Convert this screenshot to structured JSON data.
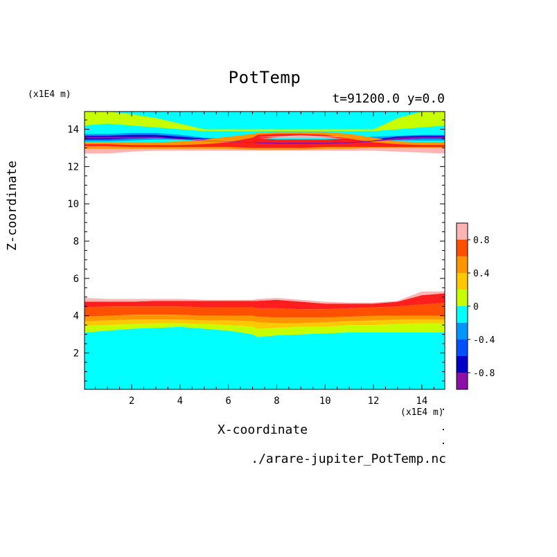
{
  "chart_data": {
    "type": "contour",
    "title": "PotTemp",
    "subtitle": "t=91200.0 y=0.0",
    "xlabel": "X-coordinate",
    "ylabel": "Z-coordinate",
    "x_unit": "(x1E4 m)",
    "y_unit": "(x1E4 m)",
    "xlim": [
      0.05,
      14.95
    ],
    "ylim": [
      0.05,
      14.95
    ],
    "x_ticks": [
      2,
      4,
      6,
      8,
      10,
      12,
      14
    ],
    "y_ticks": [
      2,
      4,
      6,
      8,
      10,
      12,
      14
    ],
    "source": "./arare-jupiter_PotTemp.nc",
    "colorbar": {
      "levels": [
        -1.0,
        -0.8,
        -0.6,
        -0.4,
        -0.2,
        0.0,
        0.2,
        0.4,
        0.6,
        0.8,
        1.0
      ],
      "colors": [
        "#8a10a8",
        "#0000c8",
        "#0050ff",
        "#0096ff",
        "#00ffff",
        "#c8ff00",
        "#ffc800",
        "#ff9600",
        "#ff5000",
        "#ff1e1e",
        "#ffb4b4"
      ],
      "tick_labels": [
        "0.8",
        "0.4",
        "0",
        "-0.4",
        "-0.8"
      ],
      "tick_values": [
        0.8,
        0.4,
        0.0,
        -0.4,
        -0.8
      ]
    },
    "bands": {
      "x": [
        0.05,
        1,
        2,
        3,
        4,
        5,
        6,
        7,
        7.2,
        8,
        9,
        10,
        11,
        12,
        13,
        14,
        14.95
      ],
      "lower": {
        "fill_color": "#00ffff",
        "top_value": 1.0,
        "base_z": 0.05,
        "boundaries": [
          [
            3.1,
            3.2,
            3.3,
            3.35,
            3.4,
            3.3,
            3.2,
            3.0,
            2.85,
            2.95,
            3.0,
            3.05,
            3.1,
            3.1,
            3.1,
            3.1,
            3.1
          ],
          [
            3.45,
            3.5,
            3.55,
            3.6,
            3.6,
            3.55,
            3.5,
            3.4,
            3.3,
            3.35,
            3.4,
            3.4,
            3.5,
            3.5,
            3.55,
            3.6,
            3.6
          ],
          [
            3.7,
            3.75,
            3.8,
            3.8,
            3.8,
            3.75,
            3.75,
            3.7,
            3.65,
            3.6,
            3.6,
            3.65,
            3.7,
            3.75,
            3.8,
            3.8,
            3.8
          ],
          [
            3.95,
            4.0,
            4.05,
            4.05,
            4.05,
            4.0,
            4.0,
            4.0,
            3.95,
            3.9,
            3.9,
            3.9,
            3.95,
            4.0,
            4.0,
            4.0,
            4.0
          ],
          [
            4.45,
            4.5,
            4.5,
            4.5,
            4.5,
            4.45,
            4.45,
            4.45,
            4.4,
            4.4,
            4.35,
            4.35,
            4.4,
            4.45,
            4.5,
            4.6,
            4.7
          ],
          [
            4.75,
            4.75,
            4.75,
            4.8,
            4.8,
            4.8,
            4.8,
            4.8,
            4.8,
            4.85,
            4.75,
            4.65,
            4.65,
            4.65,
            4.75,
            5.1,
            5.2
          ],
          [
            4.95,
            4.9,
            4.9,
            4.9,
            4.9,
            4.85,
            4.85,
            4.85,
            4.9,
            4.95,
            4.85,
            4.75,
            4.7,
            4.7,
            4.8,
            5.3,
            5.3
          ]
        ],
        "band_values": [
          0.1,
          0.3,
          0.5,
          0.7,
          0.9,
          1.0
        ]
      },
      "upper": {
        "layers": [
          {
            "value": 0.1,
            "top": [
              14.95,
              14.95,
              14.95,
              14.95,
              14.95,
              14.95,
              14.95,
              14.95,
              14.95,
              14.95,
              14.95,
              14.95,
              14.95,
              14.95,
              14.95,
              14.95,
              14.95
            ],
            "bottom": [
              13.55,
              13.55,
              13.6,
              13.6,
              13.55,
              13.55,
              13.5,
              13.45,
              13.45,
              13.45,
              13.45,
              13.45,
              13.5,
              13.55,
              13.6,
              13.65,
              13.65
            ]
          },
          {
            "value": -0.1,
            "top": [
              14.95,
              14.95,
              14.95,
              14.95,
              14.95,
              14.95,
              14.95,
              14.95,
              14.95,
              14.95,
              14.95,
              14.95,
              14.95,
              14.95,
              14.95,
              14.95,
              14.95
            ],
            "bottom": [
              13.2,
              13.2,
              13.2,
              13.2,
              13.3,
              13.4,
              13.5,
              13.6,
              13.6,
              13.6,
              13.6,
              13.6,
              13.5,
              13.35,
              13.2,
              13.2,
              13.2
            ]
          },
          {
            "value": 0.1,
            "top": [
              15.0,
              15.0,
              14.8,
              14.6,
              14.3,
              14.0,
              14.0,
              14.0,
              14.0,
              14.0,
              14.0,
              14.0,
              14.0,
              14.0,
              14.6,
              15.0,
              15.0
            ],
            "bottom": [
              14.2,
              14.3,
              14.2,
              14.1,
              14.0,
              13.9,
              13.9,
              13.9,
              13.9,
              13.9,
              13.9,
              13.9,
              13.9,
              13.9,
              14.0,
              14.1,
              14.2
            ]
          },
          {
            "value": -0.3,
            "top": [
              13.75,
              13.75,
              13.8,
              13.8,
              13.7,
              13.55,
              13.5,
              13.45,
              13.45,
              13.45,
              13.45,
              13.45,
              13.5,
              13.6,
              13.65,
              13.7,
              13.7
            ],
            "bottom": [
              13.35,
              13.35,
              13.4,
              13.45,
              13.45,
              13.45,
              13.4,
              13.3,
              13.3,
              13.2,
              13.2,
              13.2,
              13.3,
              13.4,
              13.4,
              13.4,
              13.4
            ]
          },
          {
            "value": -0.7,
            "top": [
              13.65,
              13.65,
              13.7,
              13.7,
              13.6,
              13.5,
              13.45,
              13.4,
              13.35,
              13.3,
              13.3,
              13.3,
              13.35,
              13.45,
              13.6,
              13.65,
              13.65
            ],
            "bottom": [
              13.45,
              13.45,
              13.5,
              13.55,
              13.5,
              13.45,
              13.4,
              13.35,
              13.25,
              13.2,
              13.2,
              13.2,
              13.25,
              13.35,
              13.45,
              13.5,
              13.5
            ]
          },
          {
            "value": 0.5,
            "top": [
              13.3,
              13.3,
              13.3,
              13.3,
              13.35,
              13.45,
              13.6,
              13.75,
              13.8,
              13.85,
              13.85,
              13.85,
              13.75,
              13.55,
              13.35,
              13.3,
              13.3
            ],
            "bottom": [
              13.1,
              13.1,
              13.1,
              13.1,
              13.1,
              13.1,
              13.05,
              13.0,
              13.0,
              13.0,
              13.0,
              13.05,
              13.05,
              13.1,
              13.1,
              13.1,
              13.1
            ]
          },
          {
            "value": 0.9,
            "top": [
              13.2,
              13.2,
              13.15,
              13.15,
              13.15,
              13.2,
              13.3,
              13.55,
              13.7,
              13.75,
              13.75,
              13.7,
              13.5,
              13.3,
              13.2,
              13.15,
              13.15
            ],
            "bottom": [
              12.95,
              12.95,
              12.95,
              12.95,
              12.95,
              12.95,
              12.95,
              12.9,
              12.9,
              12.9,
              12.9,
              12.95,
              12.95,
              13.0,
              13.0,
              13.0,
              13.0
            ]
          },
          {
            "value": 0.5,
            "top": [
              13.1,
              13.1,
              13.05,
              13.05,
              13.05,
              13.05,
              13.05,
              13.0,
              13.0,
              13.0,
              13.0,
              13.05,
              13.05,
              13.05,
              13.05,
              13.05,
              13.05
            ],
            "bottom": [
              12.95,
              12.95,
              12.95,
              12.95,
              12.95,
              12.95,
              12.95,
              12.9,
              12.9,
              12.9,
              12.9,
              12.95,
              12.95,
              13.0,
              13.0,
              13.0,
              13.0
            ]
          },
          {
            "value": 1.0,
            "top": [
              12.95,
              12.95,
              12.95,
              12.95,
              12.95,
              12.95,
              12.95,
              12.9,
              12.9,
              12.9,
              12.9,
              12.95,
              12.95,
              13.0,
              13.0,
              13.0,
              13.0
            ],
            "bottom": [
              12.7,
              12.7,
              12.8,
              12.85,
              12.85,
              12.85,
              12.85,
              12.85,
              12.85,
              12.85,
              12.85,
              12.85,
              12.85,
              12.85,
              12.8,
              12.75,
              12.7
            ]
          },
          {
            "value": -0.9,
            "top": [
              13.6,
              13.6,
              13.6,
              13.6,
              13.5,
              13.4,
              13.35,
              13.3,
              13.3,
              13.28,
              13.28,
              13.28,
              13.3,
              13.4,
              13.55,
              13.6,
              13.6
            ],
            "bottom": [
              13.5,
              13.5,
              13.5,
              13.55,
              13.45,
              13.38,
              13.33,
              13.28,
              13.25,
              13.22,
              13.22,
              13.22,
              13.25,
              13.35,
              13.45,
              13.5,
              13.5
            ]
          },
          {
            "value": -0.1,
            "top": [
              13.52,
              13.52,
              13.52,
              13.52,
              13.52,
              13.52,
              13.52,
              13.52,
              13.52,
              13.55,
              13.6,
              13.55,
              13.52,
              13.52,
              13.52,
              13.52,
              13.52
            ],
            "bottom": [
              13.52,
              13.52,
              13.52,
              13.52,
              13.52,
              13.52,
              13.52,
              13.52,
              13.52,
              13.45,
              13.45,
              13.45,
              13.52,
              13.52,
              13.52,
              13.52,
              13.52
            ]
          },
          {
            "value": 1.0,
            "top": [
              13.6,
              13.6,
              13.6,
              13.6,
              13.6,
              13.6,
              13.6,
              13.6,
              13.6,
              13.62,
              13.68,
              13.62,
              13.6,
              13.6,
              13.6,
              13.6,
              13.6
            ],
            "bottom": [
              13.6,
              13.6,
              13.6,
              13.6,
              13.6,
              13.6,
              13.6,
              13.6,
              13.6,
              13.55,
              13.55,
              13.55,
              13.6,
              13.6,
              13.6,
              13.6,
              13.6
            ]
          }
        ]
      }
    }
  }
}
